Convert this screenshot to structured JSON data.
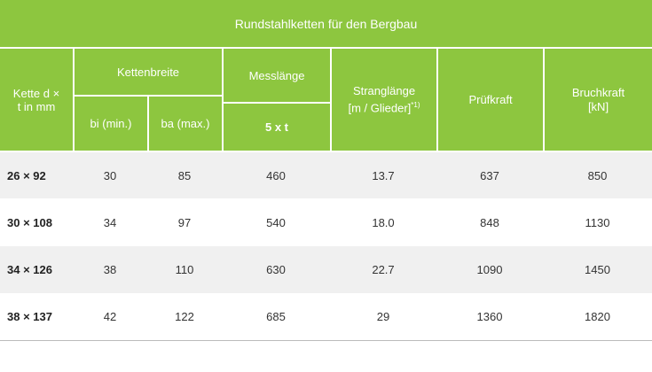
{
  "table": {
    "title": "Rundstahlketten für den Bergbau",
    "headers": {
      "chain": "Kette d × t in mm",
      "width": "Kettenbreite",
      "width_min": "bi (min.)",
      "width_max": "ba (max.)",
      "length": "Messlänge",
      "length_sub": "5 x t",
      "strand": "Stranglänge [m / Glieder]",
      "strand_note": "*1)",
      "test": "Prüfkraft",
      "break": "Bruchkraft [kN]"
    },
    "rows": [
      [
        "26 × 92",
        "30",
        "85",
        "460",
        "13.7",
        "637",
        "850"
      ],
      [
        "30 × 108",
        "34",
        "97",
        "540",
        "18.0",
        "848",
        "1130"
      ],
      [
        "34 × 126",
        "38",
        "110",
        "630",
        "22.7",
        "1090",
        "1450"
      ],
      [
        "38 × 137",
        "42",
        "122",
        "685",
        "29",
        "1360",
        "1820"
      ]
    ]
  }
}
